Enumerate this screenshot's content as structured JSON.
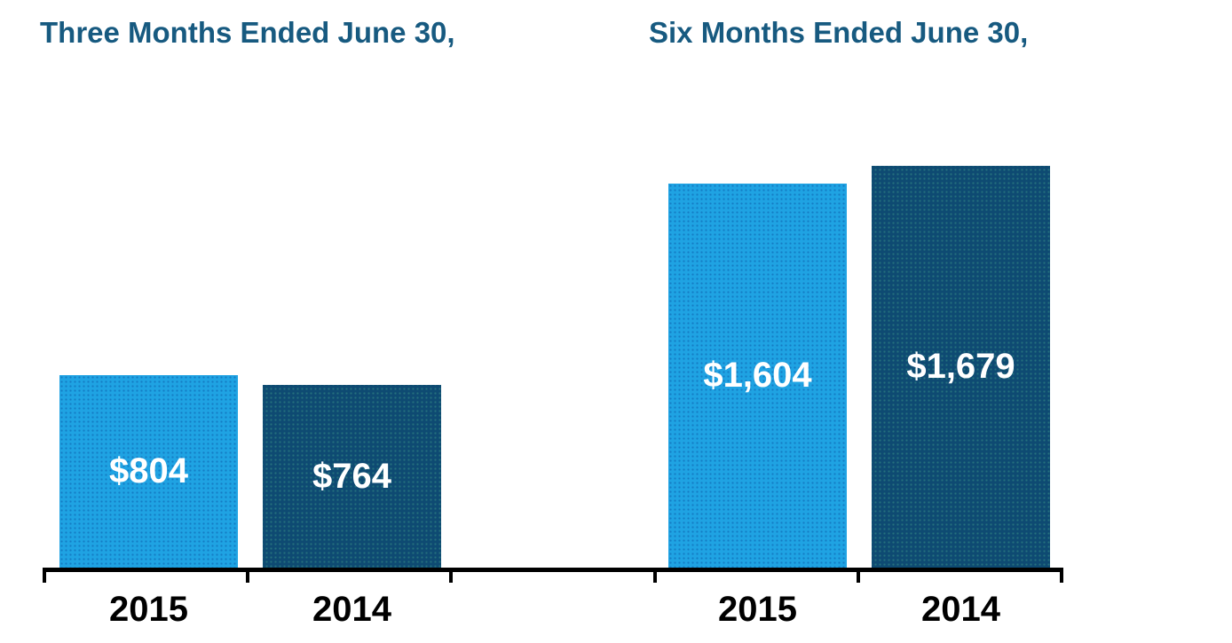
{
  "chart_data": {
    "type": "bar",
    "groups": [
      {
        "title": "Three Months Ended June 30,",
        "categories": [
          "2015",
          "2014"
        ],
        "values": [
          804,
          764
        ],
        "value_labels": [
          "$804",
          "$764"
        ]
      },
      {
        "title": "Six Months Ended June 30,",
        "categories": [
          "2015",
          "2014"
        ],
        "values": [
          1604,
          1679
        ],
        "value_labels": [
          "$1,604",
          "$1,679"
        ]
      }
    ],
    "series_colors": {
      "2015": "#1FA3E3",
      "2014": "#0E4A72"
    },
    "layout_hints": {
      "y_axis_visible": false,
      "gridlines": false,
      "baseline_axis": true,
      "value_labels_position": "inside-center",
      "legend": "none"
    },
    "colors": {
      "title_text": "#175A80",
      "value_label_text": "#FFFFFF",
      "category_label_text": "#000000",
      "axis_line": "#000000"
    }
  }
}
